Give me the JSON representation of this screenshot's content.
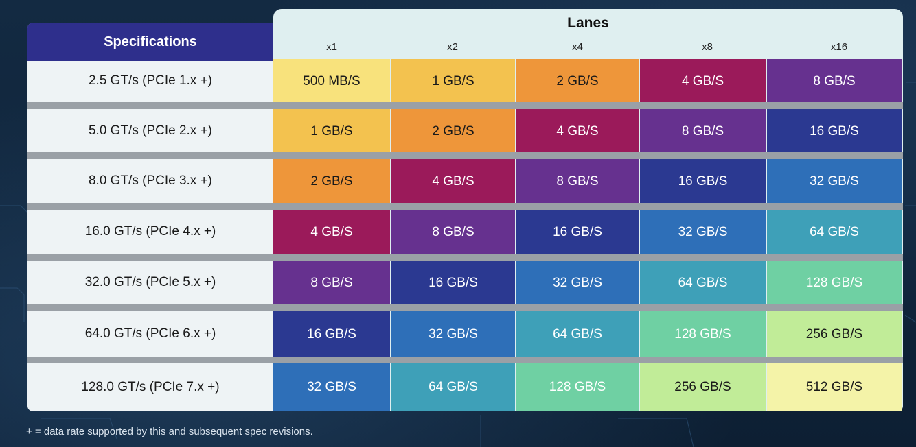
{
  "header": {
    "specifications": "Specifications",
    "lanes": "Lanes"
  },
  "lane_labels": [
    "x1",
    "x2",
    "x4",
    "x8",
    "x16"
  ],
  "rows": [
    {
      "spec": "2.5 GT/s (PCIe 1.x +)",
      "values": [
        "500 MB/S",
        "1 GB/S",
        "2 GB/S",
        "4 GB/S",
        "8 GB/S"
      ]
    },
    {
      "spec": "5.0 GT/s (PCIe 2.x +)",
      "values": [
        "1 GB/S",
        "2 GB/S",
        "4 GB/S",
        "8 GB/S",
        "16 GB/S"
      ]
    },
    {
      "spec": "8.0 GT/s (PCIe 3.x +)",
      "values": [
        "2 GB/S",
        "4 GB/S",
        "8 GB/S",
        "16 GB/S",
        "32 GB/S"
      ]
    },
    {
      "spec": "16.0 GT/s (PCIe 4.x +)",
      "values": [
        "4 GB/S",
        "8 GB/S",
        "16 GB/S",
        "32 GB/S",
        "64 GB/S"
      ]
    },
    {
      "spec": "32.0 GT/s (PCIe 5.x +)",
      "values": [
        "8 GB/S",
        "16 GB/S",
        "32 GB/S",
        "64 GB/S",
        "128 GB/S"
      ]
    },
    {
      "spec": "64.0 GT/s (PCIe 6.x +)",
      "values": [
        "16 GB/S",
        "32 GB/S",
        "64 GB/S",
        "128 GB/S",
        "256 GB/S"
      ]
    },
    {
      "spec": "128.0 GT/s (PCIe 7.x +)",
      "values": [
        "32 GB/S",
        "64 GB/S",
        "128 GB/S",
        "256 GB/S",
        "512 GB/S"
      ]
    }
  ],
  "value_colors": {
    "500 MB/S": {
      "bg": "#f8e27c",
      "fg": "#1a1a1a"
    },
    "1 GB/S": {
      "bg": "#f3c24f",
      "fg": "#1a1a1a"
    },
    "2 GB/S": {
      "bg": "#ee963a",
      "fg": "#1a1a1a"
    },
    "4 GB/S": {
      "bg": "#9b1a5a",
      "fg": "#ffffff"
    },
    "8 GB/S": {
      "bg": "#66318f",
      "fg": "#ffffff"
    },
    "16 GB/S": {
      "bg": "#2b3991",
      "fg": "#ffffff"
    },
    "32 GB/S": {
      "bg": "#2e6fb8",
      "fg": "#ffffff"
    },
    "64 GB/S": {
      "bg": "#3ea0b8",
      "fg": "#ffffff"
    },
    "128 GB/S": {
      "bg": "#6fd0a3",
      "fg": "#ffffff"
    },
    "256 GB/S": {
      "bg": "#c1ec98",
      "fg": "#1a1a1a"
    },
    "512 GB/S": {
      "bg": "#f4f3a8",
      "fg": "#1a1a1a"
    }
  },
  "footnote": "+ = data rate supported by this and subsequent spec revisions."
}
